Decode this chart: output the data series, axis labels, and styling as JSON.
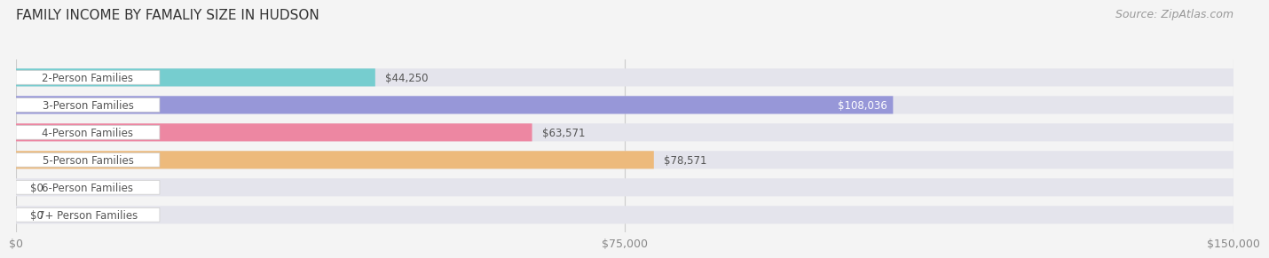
{
  "title": "FAMILY INCOME BY FAMALIY SIZE IN HUDSON",
  "source": "Source: ZipAtlas.com",
  "categories": [
    "2-Person Families",
    "3-Person Families",
    "4-Person Families",
    "5-Person Families",
    "6-Person Families",
    "7+ Person Families"
  ],
  "values": [
    44250,
    108036,
    63571,
    78571,
    0,
    0
  ],
  "bar_colors": [
    "#5bc8c8",
    "#8484d4",
    "#f07090",
    "#f0b060",
    "#f09090",
    "#a0c0f0"
  ],
  "value_labels": [
    "$44,250",
    "$108,036",
    "$63,571",
    "$78,571",
    "$0",
    "$0"
  ],
  "value_inside": [
    false,
    true,
    false,
    false,
    false,
    false
  ],
  "xlim": [
    0,
    150000
  ],
  "xticks": [
    0,
    75000,
    150000
  ],
  "xtick_labels": [
    "$0",
    "$75,000",
    "$150,000"
  ],
  "background_color": "#f4f4f4",
  "bar_background": "#e4e4ec",
  "title_fontsize": 11,
  "source_fontsize": 9,
  "label_fontsize": 8.5,
  "value_fontsize": 8.5,
  "bar_height": 0.65
}
